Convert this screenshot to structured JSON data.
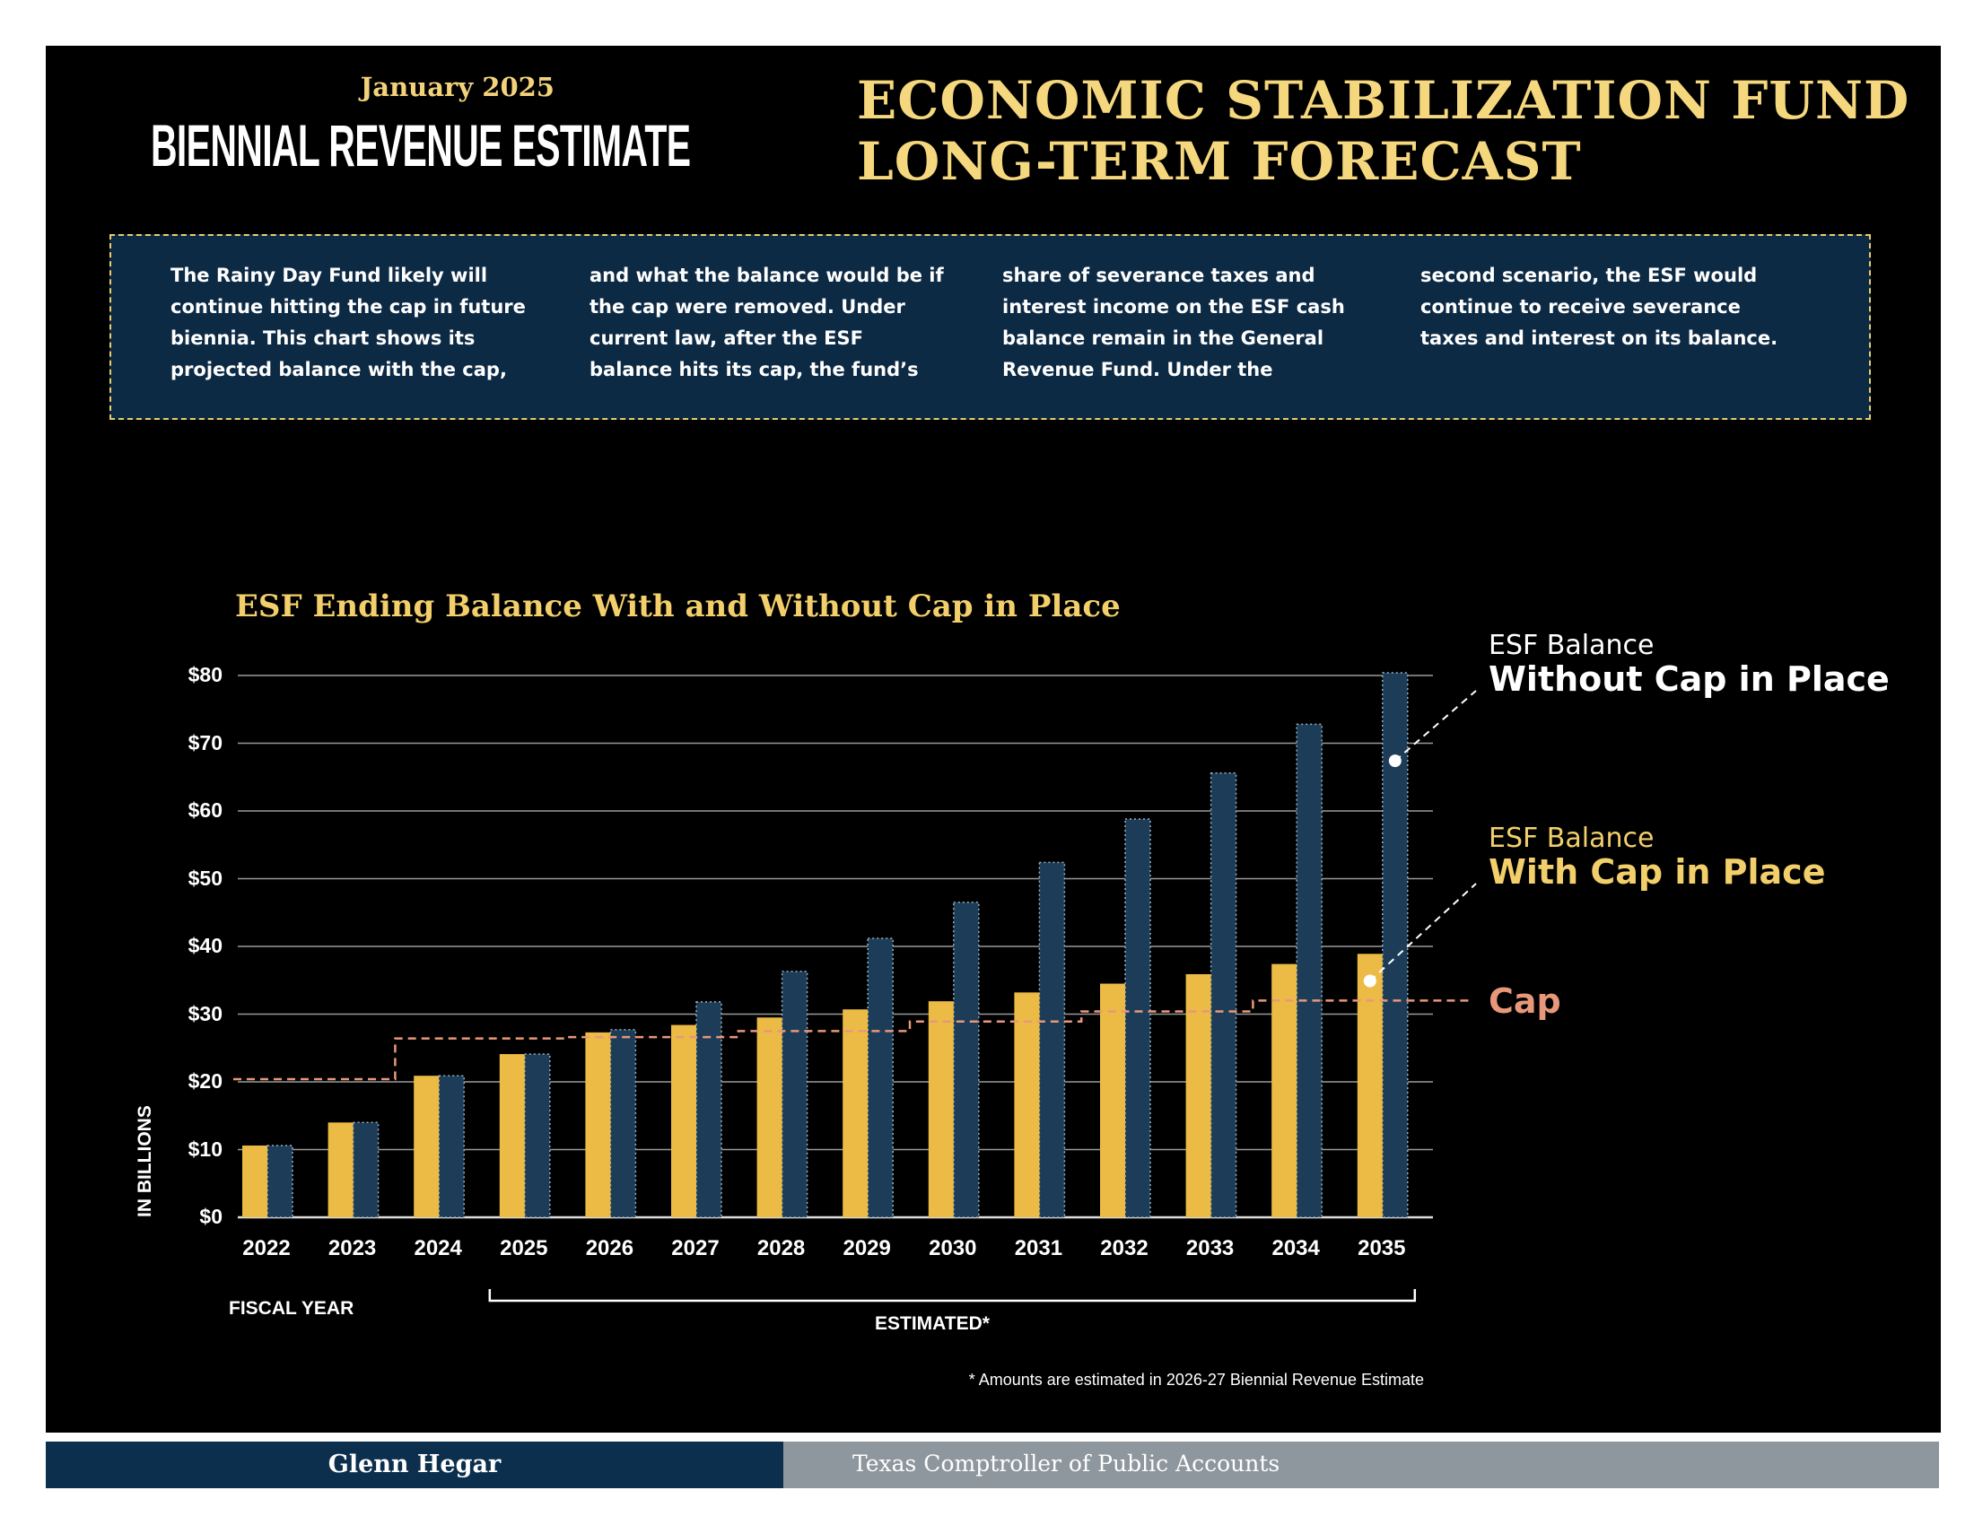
{
  "header": {
    "date": "January 2025",
    "publication": "BIENNIAL REVENUE ESTIMATE",
    "title_line1": "ECONOMIC STABILIZATION FUND",
    "title_line2": "LONG-TERM FORECAST"
  },
  "intro_columns": [
    "The Rainy Day Fund likely will continue hitting the cap in future biennia. This chart shows its projected balance with the cap,",
    "and what the balance would be if the cap were removed. Under current law, after the ESF balance hits its cap, the fund’s",
    "share of severance taxes and interest income on the ESF cash balance remain in the General Revenue Fund. Under the",
    "second scenario, the ESF would continue to receive severance taxes and interest on its balance."
  ],
  "chart_data": {
    "type": "bar",
    "title": "ESF Ending Balance With and Without Cap in Place",
    "xlabel": "FISCAL YEAR",
    "ylabel": "IN BILLIONS",
    "ylim": [
      0,
      80
    ],
    "yticks": [
      "$0",
      "$10",
      "$20",
      "$30",
      "$40",
      "$50",
      "$60",
      "$70",
      "$80"
    ],
    "ytick_values": [
      0,
      10,
      20,
      30,
      40,
      50,
      60,
      70,
      80
    ],
    "grid": true,
    "categories": [
      "2022",
      "2023",
      "2024",
      "2025",
      "2026",
      "2027",
      "2028",
      "2029",
      "2030",
      "2031",
      "2032",
      "2033",
      "2034",
      "2035"
    ],
    "estimated_range": [
      "2025",
      "2035"
    ],
    "estimated_label": "ESTIMATED*",
    "footnote": "* Amounts are estimated in 2026-27 Biennial Revenue Estimate",
    "series": [
      {
        "name": "ESF Balance With Cap in Place",
        "label_top": "ESF Balance",
        "label_bottom": "With Cap in Place",
        "color": "#ecbb45",
        "values": [
          10.6,
          14.0,
          20.9,
          24.1,
          27.3,
          28.4,
          29.5,
          30.7,
          31.9,
          33.2,
          34.5,
          35.9,
          37.4,
          38.9
        ]
      },
      {
        "name": "ESF Balance Without Cap in Place",
        "label_top": "ESF Balance",
        "label_bottom": "Without Cap in Place",
        "color": "#1c3c57",
        "values": [
          10.6,
          14.0,
          20.9,
          24.1,
          27.7,
          31.8,
          36.3,
          41.2,
          46.5,
          52.4,
          58.8,
          65.6,
          72.8,
          80.4
        ]
      },
      {
        "name": "Cap",
        "type": "step-line",
        "color": "#e8987a",
        "values": [
          20.4,
          20.4,
          26.4,
          26.4,
          26.6,
          26.6,
          27.5,
          27.5,
          28.9,
          28.9,
          30.4,
          30.4,
          32.0,
          32.0
        ]
      }
    ]
  },
  "footer": {
    "left": "Glenn Hegar",
    "right": "Texas Comptroller of Public Accounts"
  }
}
